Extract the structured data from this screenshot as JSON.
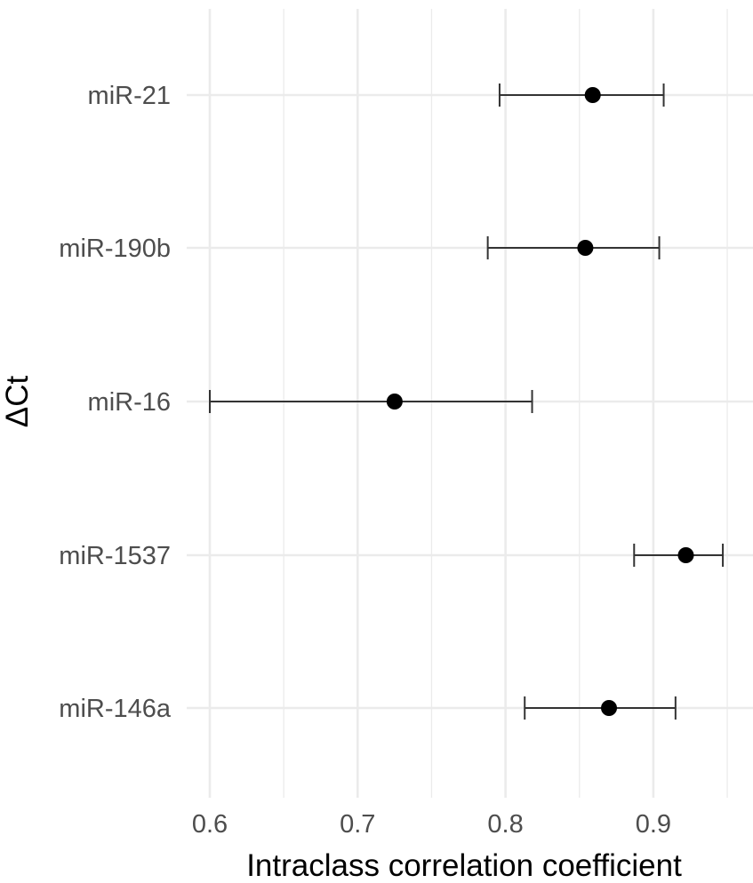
{
  "chart_data": {
    "type": "scatter",
    "subtype": "point-with-error-bars",
    "title": "",
    "xlabel": "Intraclass correlation coefficient",
    "ylabel": "ΔCt",
    "xlim": [
      0.58,
      0.95
    ],
    "x_ticks": [
      0.6,
      0.7,
      0.8,
      0.9
    ],
    "x_tick_labels": [
      "0.6",
      "0.7",
      "0.8",
      "0.9"
    ],
    "grid": true,
    "legend": "none",
    "categories": [
      "miR-21",
      "miR-190b",
      "miR-16",
      "miR-1537",
      "miR-146a"
    ],
    "points": [
      {
        "label": "miR-21",
        "value": 0.859,
        "lower": 0.796,
        "upper": 0.907
      },
      {
        "label": "miR-190b",
        "value": 0.854,
        "lower": 0.788,
        "upper": 0.904
      },
      {
        "label": "miR-16",
        "value": 0.725,
        "lower": 0.6,
        "upper": 0.818
      },
      {
        "label": "miR-1537",
        "value": 0.922,
        "lower": 0.887,
        "upper": 0.947
      },
      {
        "label": "miR-146a",
        "value": 0.87,
        "lower": 0.813,
        "upper": 0.915
      }
    ],
    "colors": {
      "point": "#000000",
      "errorbar": "#333333",
      "grid": "#ebebeb",
      "tick_text": "#4d4d4d",
      "title_text": "#000000"
    }
  }
}
